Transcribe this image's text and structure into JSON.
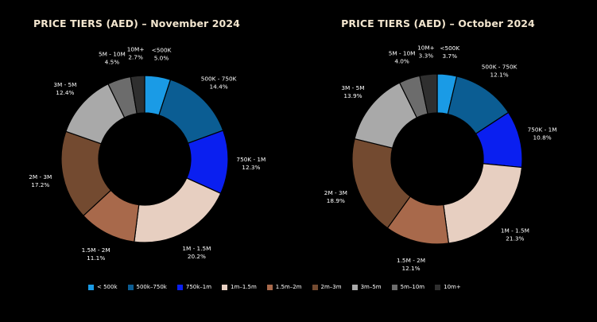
{
  "chart_data": [
    {
      "type": "pie",
      "title": "PRICE TIERS (AED) – November 2024",
      "slices": [
        {
          "label": "<500K",
          "value": 5.0,
          "value_text": "5.0%"
        },
        {
          "label": "500K - 750K",
          "value": 14.4,
          "value_text": "14.4%"
        },
        {
          "label": "750K - 1M",
          "value": 12.3,
          "value_text": "12.3%"
        },
        {
          "label": "1M - 1.5M",
          "value": 20.2,
          "value_text": "20.2%"
        },
        {
          "label": "1.5M - 2M",
          "value": 11.1,
          "value_text": "11.1%"
        },
        {
          "label": "2M - 3M",
          "value": 17.2,
          "value_text": "17.2%"
        },
        {
          "label": "3M - 5M",
          "value": 12.4,
          "value_text": "12.4%"
        },
        {
          "label": "5M - 10M",
          "value": 4.5,
          "value_text": "4.5%"
        },
        {
          "label": "10M+",
          "value": 2.7,
          "value_text": "2.7%"
        }
      ]
    },
    {
      "type": "pie",
      "title": "PRICE TIERS (AED) – October 2024",
      "slices": [
        {
          "label": "<500K",
          "value": 3.7,
          "value_text": "3.7%"
        },
        {
          "label": "500K - 750K",
          "value": 12.1,
          "value_text": "12.1%"
        },
        {
          "label": "750K - 1M",
          "value": 10.8,
          "value_text": "10.8%"
        },
        {
          "label": "1M - 1.5M",
          "value": 21.3,
          "value_text": "21.3%"
        },
        {
          "label": "1.5M - 2M",
          "value": 12.1,
          "value_text": "12.1%"
        },
        {
          "label": "2M - 3M",
          "value": 18.9,
          "value_text": "18.9%"
        },
        {
          "label": "3M - 5M",
          "value": 13.9,
          "value_text": "13.9%"
        },
        {
          "label": "5M - 10M",
          "value": 4.0,
          "value_text": "4.0%"
        },
        {
          "label": "10M+",
          "value": 3.3,
          "value_text": "3.3%"
        }
      ]
    }
  ],
  "legend": [
    {
      "label": "< 500k",
      "color": "#1a9be6"
    },
    {
      "label": "500k–750k",
      "color": "#0b5d93"
    },
    {
      "label": "750k–1m",
      "color": "#0a1ff0"
    },
    {
      "label": "1m–1.5m",
      "color": "#e7cfc1"
    },
    {
      "label": "1.5m–2m",
      "color": "#a8694b"
    },
    {
      "label": "2m–3m",
      "color": "#734a30"
    },
    {
      "label": "3m–5m",
      "color": "#a9a9a9"
    },
    {
      "label": "5m–10m",
      "color": "#6c6c6c"
    },
    {
      "label": "10m+",
      "color": "#2f2f2f"
    }
  ]
}
